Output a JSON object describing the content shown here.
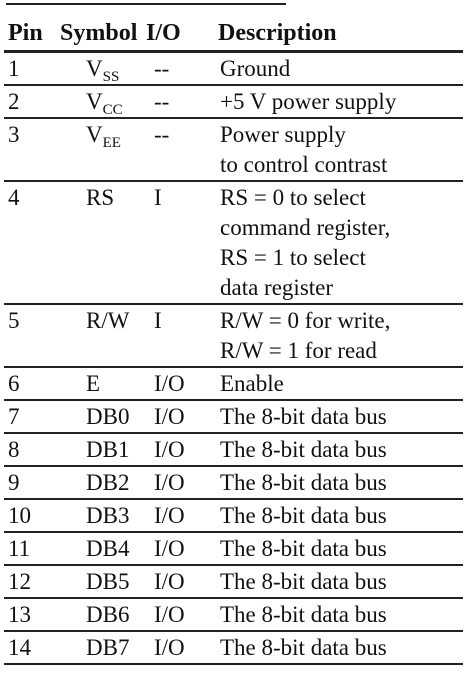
{
  "table": {
    "headers": [
      "Pin",
      "Symbol",
      "I/O",
      "Description"
    ],
    "rows": [
      {
        "pin": "1",
        "sym_base": "V",
        "sym_sub": "SS",
        "io": "--",
        "desc": [
          "Ground"
        ]
      },
      {
        "pin": "2",
        "sym_base": "V",
        "sym_sub": "CC",
        "io": "--",
        "desc": [
          "+5 V power supply"
        ]
      },
      {
        "pin": "3",
        "sym_base": "V",
        "sym_sub": "EE",
        "io": "--",
        "desc": [
          "Power supply",
          "to control contrast"
        ]
      },
      {
        "pin": "4",
        "sym_base": "RS",
        "sym_sub": "",
        "io": "I",
        "desc": [
          "RS = 0 to select",
          "command register,",
          "RS = 1 to select",
          "data register"
        ]
      },
      {
        "pin": "5",
        "sym_base": "R/W",
        "sym_sub": "",
        "io": "I",
        "desc": [
          "R/W = 0 for write,",
          "R/W = 1 for read"
        ]
      },
      {
        "pin": "6",
        "sym_base": "E",
        "sym_sub": "",
        "io": "I/O",
        "desc": [
          "Enable"
        ]
      },
      {
        "pin": "7",
        "sym_base": "DB0",
        "sym_sub": "",
        "io": "I/O",
        "desc": [
          "The 8-bit data bus"
        ]
      },
      {
        "pin": "8",
        "sym_base": "DB1",
        "sym_sub": "",
        "io": "I/O",
        "desc": [
          "The 8-bit data bus"
        ]
      },
      {
        "pin": "9",
        "sym_base": "DB2",
        "sym_sub": "",
        "io": "I/O",
        "desc": [
          "The 8-bit data bus"
        ]
      },
      {
        "pin": "10",
        "sym_base": "DB3",
        "sym_sub": "",
        "io": "I/O",
        "desc": [
          "The 8-bit data bus"
        ]
      },
      {
        "pin": "11",
        "sym_base": "DB4",
        "sym_sub": "",
        "io": "I/O",
        "desc": [
          "The 8-bit data bus"
        ]
      },
      {
        "pin": "12",
        "sym_base": "DB5",
        "sym_sub": "",
        "io": "I/O",
        "desc": [
          "The 8-bit data bus"
        ]
      },
      {
        "pin": "13",
        "sym_base": "DB6",
        "sym_sub": "",
        "io": "I/O",
        "desc": [
          "The 8-bit data bus"
        ]
      },
      {
        "pin": "14",
        "sym_base": "DB7",
        "sym_sub": "",
        "io": "I/O",
        "desc": [
          "The 8-bit data bus"
        ]
      }
    ]
  }
}
